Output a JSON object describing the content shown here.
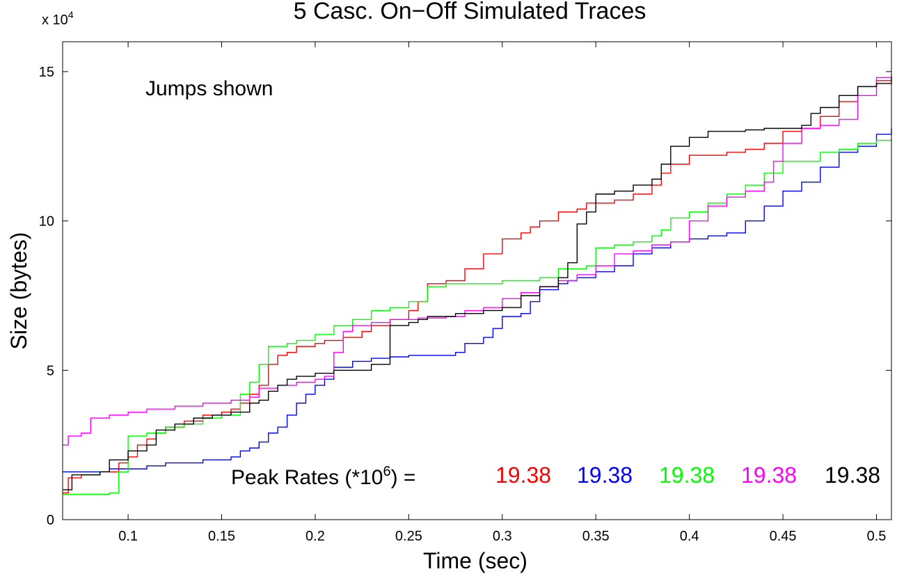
{
  "chart_data": {
    "type": "line",
    "title": "5 Casc. On−Off Simulated Traces",
    "xlabel": "Time (sec)",
    "ylabel": "Size (bytes)",
    "y_exponent_label": "x 10",
    "y_exponent_power": "4",
    "xlim": [
      0.065,
      0.508
    ],
    "ylim": [
      0,
      16
    ],
    "xticks": [
      0.1,
      0.15,
      0.2,
      0.25,
      0.3,
      0.35,
      0.4,
      0.45,
      0.5
    ],
    "xtick_labels": [
      "0.1",
      "0.15",
      "0.2",
      "0.25",
      "0.3",
      "0.35",
      "0.4",
      "0.45",
      "0.5"
    ],
    "yticks": [
      0,
      5,
      10,
      15
    ],
    "ytick_labels": [
      "0",
      "5",
      "10",
      "15"
    ],
    "grid": false,
    "annotation": "Jumps shown",
    "peak_label_prefix": "Peak Rates (*10",
    "peak_label_power": "6",
    "peak_label_suffix": ") =",
    "peak_rates": [
      "19.38",
      "19.38",
      "19.38",
      "19.38",
      "19.38"
    ],
    "series": [
      {
        "color": "#ff0000",
        "points": [
          [
            0.065,
            0.9
          ],
          [
            0.068,
            1.4
          ],
          [
            0.075,
            1.5
          ],
          [
            0.085,
            1.6
          ],
          [
            0.095,
            1.9
          ],
          [
            0.1,
            2.1
          ],
          [
            0.105,
            2.5
          ],
          [
            0.11,
            2.7
          ],
          [
            0.115,
            2.9
          ],
          [
            0.12,
            3.1
          ],
          [
            0.13,
            3.3
          ],
          [
            0.14,
            3.5
          ],
          [
            0.15,
            3.6
          ],
          [
            0.155,
            3.7
          ],
          [
            0.16,
            3.9
          ],
          [
            0.165,
            4.2
          ],
          [
            0.17,
            4.5
          ],
          [
            0.175,
            5.2
          ],
          [
            0.18,
            5.5
          ],
          [
            0.185,
            5.6
          ],
          [
            0.19,
            5.8
          ],
          [
            0.2,
            5.9
          ],
          [
            0.205,
            6.0
          ],
          [
            0.215,
            6.1
          ],
          [
            0.225,
            6.3
          ],
          [
            0.23,
            6.5
          ],
          [
            0.24,
            6.7
          ],
          [
            0.25,
            7.0
          ],
          [
            0.255,
            7.3
          ],
          [
            0.26,
            7.9
          ],
          [
            0.27,
            8.0
          ],
          [
            0.28,
            8.4
          ],
          [
            0.29,
            8.9
          ],
          [
            0.3,
            9.4
          ],
          [
            0.31,
            9.6
          ],
          [
            0.315,
            9.8
          ],
          [
            0.32,
            10.0
          ],
          [
            0.33,
            10.3
          ],
          [
            0.34,
            10.4
          ],
          [
            0.345,
            10.6
          ],
          [
            0.36,
            10.7
          ],
          [
            0.37,
            10.9
          ],
          [
            0.38,
            11.2
          ],
          [
            0.385,
            11.6
          ],
          [
            0.39,
            11.9
          ],
          [
            0.4,
            12.2
          ],
          [
            0.42,
            12.3
          ],
          [
            0.43,
            12.4
          ],
          [
            0.44,
            12.6
          ],
          [
            0.45,
            13.0
          ],
          [
            0.46,
            13.1
          ],
          [
            0.47,
            13.5
          ],
          [
            0.48,
            14.0
          ],
          [
            0.49,
            14.5
          ],
          [
            0.5,
            14.7
          ],
          [
            0.508,
            14.8
          ]
        ]
      },
      {
        "color": "#0000ff",
        "points": [
          [
            0.065,
            1.6
          ],
          [
            0.09,
            1.7
          ],
          [
            0.1,
            1.7
          ],
          [
            0.11,
            1.8
          ],
          [
            0.12,
            1.9
          ],
          [
            0.14,
            2.0
          ],
          [
            0.155,
            2.1
          ],
          [
            0.16,
            2.3
          ],
          [
            0.165,
            2.4
          ],
          [
            0.17,
            2.6
          ],
          [
            0.175,
            2.9
          ],
          [
            0.18,
            3.1
          ],
          [
            0.185,
            3.5
          ],
          [
            0.19,
            3.9
          ],
          [
            0.195,
            4.2
          ],
          [
            0.2,
            4.5
          ],
          [
            0.205,
            4.7
          ],
          [
            0.21,
            5.1
          ],
          [
            0.22,
            5.3
          ],
          [
            0.23,
            5.4
          ],
          [
            0.24,
            5.45
          ],
          [
            0.25,
            5.5
          ],
          [
            0.26,
            5.5
          ],
          [
            0.275,
            5.6
          ],
          [
            0.28,
            5.9
          ],
          [
            0.29,
            6.1
          ],
          [
            0.295,
            6.4
          ],
          [
            0.3,
            6.8
          ],
          [
            0.31,
            6.9
          ],
          [
            0.315,
            7.3
          ],
          [
            0.32,
            7.7
          ],
          [
            0.33,
            7.9
          ],
          [
            0.335,
            8.0
          ],
          [
            0.34,
            8.1
          ],
          [
            0.35,
            8.3
          ],
          [
            0.36,
            8.5
          ],
          [
            0.37,
            8.9
          ],
          [
            0.38,
            9.1
          ],
          [
            0.39,
            9.3
          ],
          [
            0.4,
            9.4
          ],
          [
            0.41,
            9.5
          ],
          [
            0.42,
            9.6
          ],
          [
            0.43,
            10.0
          ],
          [
            0.44,
            10.5
          ],
          [
            0.45,
            11.0
          ],
          [
            0.46,
            11.3
          ],
          [
            0.47,
            11.8
          ],
          [
            0.48,
            12.3
          ],
          [
            0.49,
            12.5
          ],
          [
            0.5,
            12.9
          ],
          [
            0.508,
            13.1
          ]
        ]
      },
      {
        "color": "#00ff00",
        "points": [
          [
            0.065,
            0.85
          ],
          [
            0.09,
            0.9
          ],
          [
            0.095,
            1.6
          ],
          [
            0.1,
            2.8
          ],
          [
            0.11,
            2.9
          ],
          [
            0.12,
            3.1
          ],
          [
            0.13,
            3.2
          ],
          [
            0.14,
            3.4
          ],
          [
            0.15,
            3.5
          ],
          [
            0.16,
            4.2
          ],
          [
            0.165,
            4.6
          ],
          [
            0.17,
            5.2
          ],
          [
            0.175,
            5.8
          ],
          [
            0.185,
            5.9
          ],
          [
            0.19,
            6.0
          ],
          [
            0.2,
            6.2
          ],
          [
            0.21,
            6.5
          ],
          [
            0.22,
            6.7
          ],
          [
            0.23,
            7.0
          ],
          [
            0.24,
            7.1
          ],
          [
            0.25,
            7.3
          ],
          [
            0.26,
            7.8
          ],
          [
            0.27,
            7.9
          ],
          [
            0.29,
            7.9
          ],
          [
            0.3,
            8.0
          ],
          [
            0.32,
            8.1
          ],
          [
            0.33,
            8.4
          ],
          [
            0.345,
            8.5
          ],
          [
            0.35,
            9.1
          ],
          [
            0.36,
            9.2
          ],
          [
            0.37,
            9.3
          ],
          [
            0.38,
            9.5
          ],
          [
            0.385,
            9.7
          ],
          [
            0.39,
            10.1
          ],
          [
            0.4,
            10.3
          ],
          [
            0.41,
            10.6
          ],
          [
            0.42,
            10.9
          ],
          [
            0.43,
            11.2
          ],
          [
            0.44,
            11.6
          ],
          [
            0.45,
            12.0
          ],
          [
            0.47,
            12.3
          ],
          [
            0.48,
            12.4
          ],
          [
            0.49,
            12.6
          ],
          [
            0.5,
            12.7
          ],
          [
            0.508,
            12.75
          ]
        ]
      },
      {
        "color": "#ff00ff",
        "points": [
          [
            0.065,
            2.5
          ],
          [
            0.068,
            2.8
          ],
          [
            0.075,
            2.9
          ],
          [
            0.08,
            3.4
          ],
          [
            0.09,
            3.5
          ],
          [
            0.1,
            3.6
          ],
          [
            0.11,
            3.7
          ],
          [
            0.125,
            3.8
          ],
          [
            0.14,
            3.9
          ],
          [
            0.155,
            4.0
          ],
          [
            0.165,
            4.1
          ],
          [
            0.17,
            4.4
          ],
          [
            0.18,
            4.5
          ],
          [
            0.19,
            4.6
          ],
          [
            0.2,
            4.7
          ],
          [
            0.205,
            4.8
          ],
          [
            0.21,
            5.6
          ],
          [
            0.215,
            6.3
          ],
          [
            0.22,
            6.5
          ],
          [
            0.23,
            6.6
          ],
          [
            0.24,
            6.7
          ],
          [
            0.255,
            6.75
          ],
          [
            0.27,
            6.8
          ],
          [
            0.28,
            7.0
          ],
          [
            0.29,
            7.1
          ],
          [
            0.3,
            7.4
          ],
          [
            0.31,
            7.6
          ],
          [
            0.32,
            7.8
          ],
          [
            0.33,
            8.0
          ],
          [
            0.34,
            8.2
          ],
          [
            0.35,
            8.5
          ],
          [
            0.36,
            8.9
          ],
          [
            0.37,
            9.0
          ],
          [
            0.38,
            9.2
          ],
          [
            0.39,
            9.3
          ],
          [
            0.4,
            10.0
          ],
          [
            0.41,
            10.5
          ],
          [
            0.42,
            10.8
          ],
          [
            0.43,
            11.0
          ],
          [
            0.44,
            11.3
          ],
          [
            0.445,
            12.0
          ],
          [
            0.45,
            12.6
          ],
          [
            0.46,
            13.1
          ],
          [
            0.47,
            13.2
          ],
          [
            0.48,
            13.4
          ],
          [
            0.49,
            14.2
          ],
          [
            0.5,
            14.8
          ],
          [
            0.508,
            14.9
          ]
        ]
      },
      {
        "color": "#000000",
        "points": [
          [
            0.065,
            1.0
          ],
          [
            0.07,
            1.5
          ],
          [
            0.085,
            1.6
          ],
          [
            0.09,
            2.0
          ],
          [
            0.1,
            2.3
          ],
          [
            0.11,
            2.5
          ],
          [
            0.115,
            3.0
          ],
          [
            0.125,
            3.2
          ],
          [
            0.135,
            3.4
          ],
          [
            0.145,
            3.5
          ],
          [
            0.155,
            3.6
          ],
          [
            0.165,
            3.9
          ],
          [
            0.17,
            4.0
          ],
          [
            0.175,
            4.3
          ],
          [
            0.18,
            4.5
          ],
          [
            0.185,
            4.7
          ],
          [
            0.19,
            4.8
          ],
          [
            0.2,
            4.9
          ],
          [
            0.21,
            5.0
          ],
          [
            0.22,
            5.0
          ],
          [
            0.23,
            5.2
          ],
          [
            0.24,
            6.5
          ],
          [
            0.25,
            6.6
          ],
          [
            0.255,
            6.7
          ],
          [
            0.26,
            6.8
          ],
          [
            0.275,
            6.9
          ],
          [
            0.29,
            7.0
          ],
          [
            0.3,
            7.1
          ],
          [
            0.31,
            7.5
          ],
          [
            0.32,
            7.8
          ],
          [
            0.33,
            8.1
          ],
          [
            0.335,
            8.6
          ],
          [
            0.34,
            9.9
          ],
          [
            0.345,
            10.3
          ],
          [
            0.35,
            10.9
          ],
          [
            0.36,
            11.0
          ],
          [
            0.37,
            11.2
          ],
          [
            0.38,
            11.4
          ],
          [
            0.385,
            11.9
          ],
          [
            0.39,
            12.5
          ],
          [
            0.4,
            12.8
          ],
          [
            0.41,
            13.0
          ],
          [
            0.43,
            13.05
          ],
          [
            0.44,
            13.1
          ],
          [
            0.45,
            13.1
          ],
          [
            0.46,
            13.2
          ],
          [
            0.465,
            13.6
          ],
          [
            0.47,
            13.8
          ],
          [
            0.48,
            14.2
          ],
          [
            0.49,
            14.5
          ],
          [
            0.5,
            14.6
          ],
          [
            0.508,
            14.8
          ]
        ]
      }
    ]
  }
}
